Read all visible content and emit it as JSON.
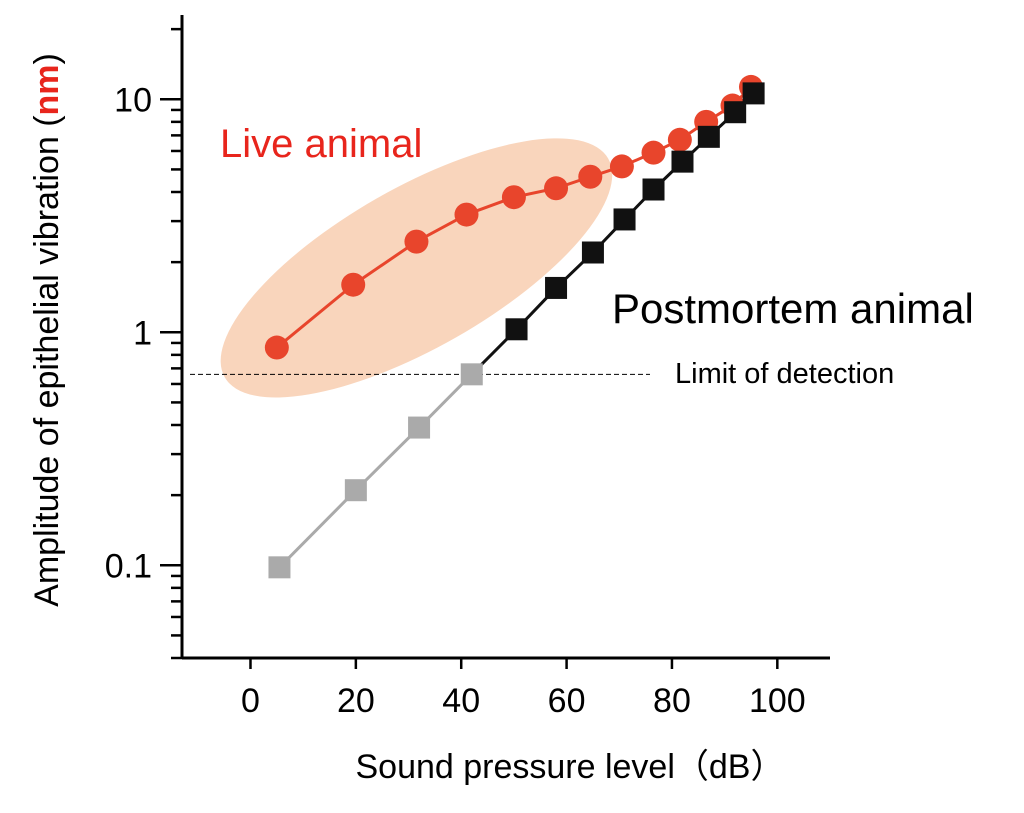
{
  "chart_data": {
    "type": "line",
    "title": "",
    "xlabel": "Sound pressure level（dB）",
    "ylabel_prefix": "Amplitude of epithelial vibration (",
    "ylabel_unit": "nm",
    "ylabel_suffix": ")",
    "x_scale": "linear",
    "y_scale": "log",
    "xlim": [
      -13,
      110
    ],
    "ylim": [
      0.04,
      23
    ],
    "x_ticks": [
      0,
      20,
      40,
      60,
      80,
      100
    ],
    "x_tick_labels": [
      "0",
      "20",
      "40",
      "60",
      "80",
      "100"
    ],
    "y_major_ticks": [
      0.1,
      1,
      10
    ],
    "y_tick_labels": [
      "0.1",
      "1",
      "10"
    ],
    "limit_of_detection": 0.66,
    "limit_of_detection_label": "Limit of detection",
    "series": [
      {
        "name": "Live animal",
        "color": "#e8452c",
        "marker": "circle",
        "x": [
          5,
          19.5,
          31.5,
          41,
          50,
          58,
          64.5,
          70.5,
          76.5,
          81.5,
          86.5,
          91.5,
          95
        ],
        "y": [
          0.86,
          1.6,
          2.45,
          3.2,
          3.8,
          4.15,
          4.65,
          5.15,
          5.9,
          6.7,
          8.0,
          9.4,
          11.3
        ]
      },
      {
        "name": "Postmortem animal",
        "color": "#111111",
        "below_detection_color": "#aaaaaa",
        "marker": "square",
        "x": [
          5.5,
          20,
          32,
          42,
          50.5,
          58,
          65,
          71,
          76.5,
          82,
          87,
          92,
          95.5
        ],
        "y": [
          0.098,
          0.21,
          0.39,
          0.66,
          1.03,
          1.55,
          2.2,
          3.05,
          4.1,
          5.4,
          6.9,
          8.8,
          10.6
        ]
      }
    ],
    "highlight": {
      "series": "Live animal",
      "shape": "ellipse",
      "color": "#f9d5bc"
    },
    "annotations": {
      "live": "Live animal",
      "postmortem": "Postmortem animal"
    }
  }
}
